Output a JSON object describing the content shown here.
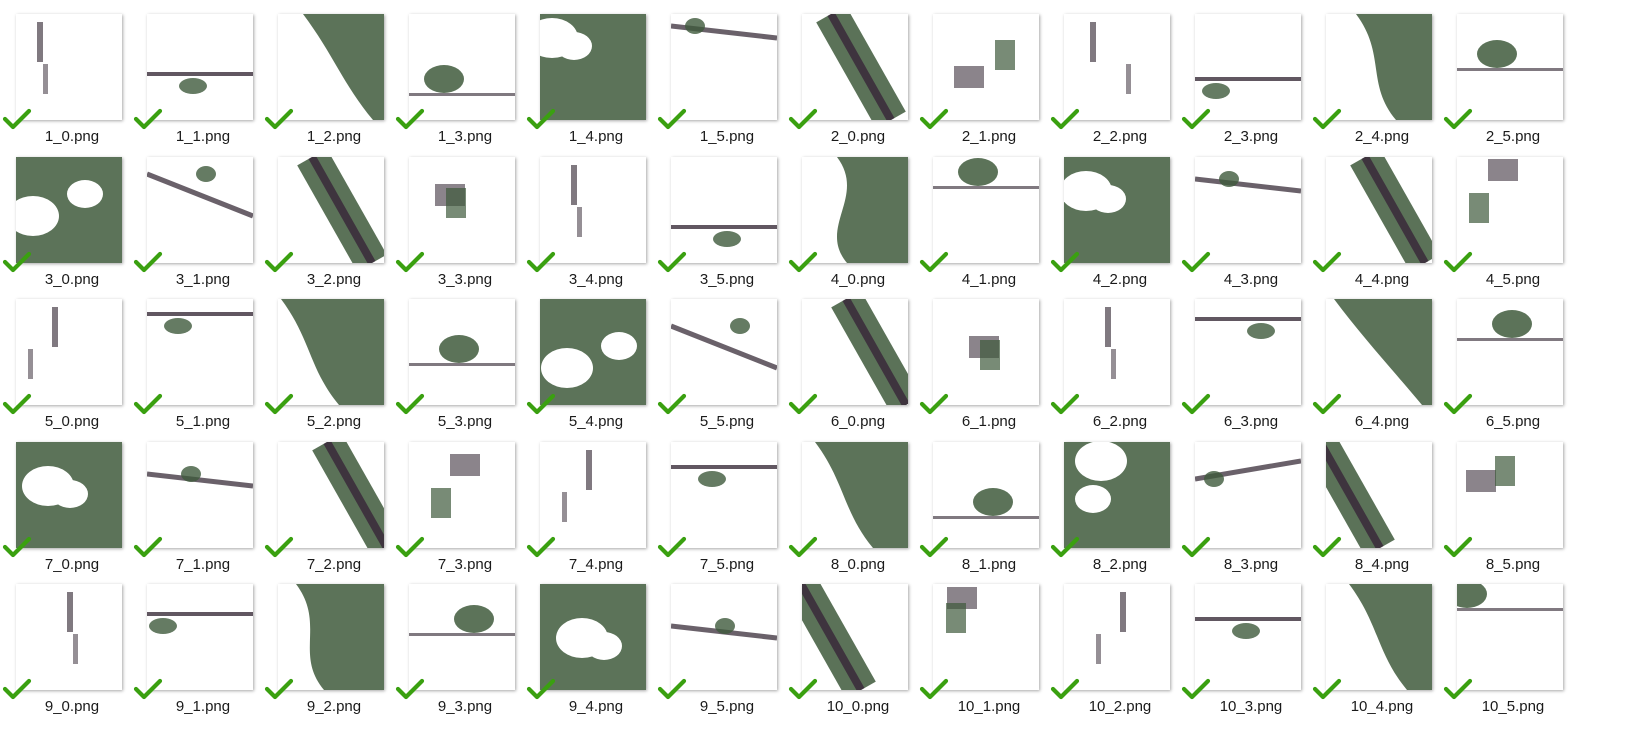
{
  "colors": {
    "vegetation": "#3f5a3c",
    "dark": "#2c1f2c",
    "road": "#3a2a3a",
    "checkmark": "#3aa010",
    "background": "#ffffff"
  },
  "files": [
    {
      "name": "1_0.png",
      "selected": true,
      "icon": "satellite-mask-thumbnail"
    },
    {
      "name": "1_1.png",
      "selected": true,
      "icon": "satellite-mask-thumbnail"
    },
    {
      "name": "1_2.png",
      "selected": true,
      "icon": "satellite-mask-thumbnail"
    },
    {
      "name": "1_3.png",
      "selected": true,
      "icon": "satellite-mask-thumbnail"
    },
    {
      "name": "1_4.png",
      "selected": true,
      "icon": "satellite-mask-thumbnail"
    },
    {
      "name": "1_5.png",
      "selected": true,
      "icon": "satellite-mask-thumbnail"
    },
    {
      "name": "2_0.png",
      "selected": true,
      "icon": "satellite-mask-thumbnail"
    },
    {
      "name": "2_1.png",
      "selected": true,
      "icon": "satellite-mask-thumbnail"
    },
    {
      "name": "2_2.png",
      "selected": true,
      "icon": "satellite-mask-thumbnail"
    },
    {
      "name": "2_3.png",
      "selected": true,
      "icon": "satellite-mask-thumbnail"
    },
    {
      "name": "2_4.png",
      "selected": true,
      "icon": "satellite-mask-thumbnail"
    },
    {
      "name": "2_5.png",
      "selected": true,
      "icon": "satellite-mask-thumbnail"
    },
    {
      "name": "3_0.png",
      "selected": true,
      "icon": "satellite-mask-thumbnail"
    },
    {
      "name": "3_1.png",
      "selected": true,
      "icon": "satellite-mask-thumbnail"
    },
    {
      "name": "3_2.png",
      "selected": true,
      "icon": "satellite-mask-thumbnail"
    },
    {
      "name": "3_3.png",
      "selected": true,
      "icon": "satellite-mask-thumbnail"
    },
    {
      "name": "3_4.png",
      "selected": true,
      "icon": "satellite-mask-thumbnail"
    },
    {
      "name": "3_5.png",
      "selected": true,
      "icon": "satellite-mask-thumbnail"
    },
    {
      "name": "4_0.png",
      "selected": true,
      "icon": "satellite-mask-thumbnail"
    },
    {
      "name": "4_1.png",
      "selected": true,
      "icon": "satellite-mask-thumbnail"
    },
    {
      "name": "4_2.png",
      "selected": true,
      "icon": "satellite-mask-thumbnail"
    },
    {
      "name": "4_3.png",
      "selected": true,
      "icon": "satellite-mask-thumbnail"
    },
    {
      "name": "4_4.png",
      "selected": true,
      "icon": "satellite-mask-thumbnail"
    },
    {
      "name": "4_5.png",
      "selected": true,
      "icon": "satellite-mask-thumbnail"
    },
    {
      "name": "5_0.png",
      "selected": true,
      "icon": "satellite-mask-thumbnail"
    },
    {
      "name": "5_1.png",
      "selected": true,
      "icon": "satellite-mask-thumbnail"
    },
    {
      "name": "5_2.png",
      "selected": true,
      "icon": "satellite-mask-thumbnail"
    },
    {
      "name": "5_3.png",
      "selected": true,
      "icon": "satellite-mask-thumbnail"
    },
    {
      "name": "5_4.png",
      "selected": true,
      "icon": "satellite-mask-thumbnail"
    },
    {
      "name": "5_5.png",
      "selected": true,
      "icon": "satellite-mask-thumbnail"
    },
    {
      "name": "6_0.png",
      "selected": true,
      "icon": "satellite-mask-thumbnail"
    },
    {
      "name": "6_1.png",
      "selected": true,
      "icon": "satellite-mask-thumbnail"
    },
    {
      "name": "6_2.png",
      "selected": true,
      "icon": "satellite-mask-thumbnail"
    },
    {
      "name": "6_3.png",
      "selected": true,
      "icon": "satellite-mask-thumbnail"
    },
    {
      "name": "6_4.png",
      "selected": true,
      "icon": "satellite-mask-thumbnail"
    },
    {
      "name": "6_5.png",
      "selected": true,
      "icon": "satellite-mask-thumbnail"
    },
    {
      "name": "7_0.png",
      "selected": true,
      "icon": "satellite-mask-thumbnail"
    },
    {
      "name": "7_1.png",
      "selected": true,
      "icon": "satellite-mask-thumbnail"
    },
    {
      "name": "7_2.png",
      "selected": true,
      "icon": "satellite-mask-thumbnail"
    },
    {
      "name": "7_3.png",
      "selected": true,
      "icon": "satellite-mask-thumbnail"
    },
    {
      "name": "7_4.png",
      "selected": true,
      "icon": "satellite-mask-thumbnail"
    },
    {
      "name": "7_5.png",
      "selected": true,
      "icon": "satellite-mask-thumbnail"
    },
    {
      "name": "8_0.png",
      "selected": true,
      "icon": "satellite-mask-thumbnail"
    },
    {
      "name": "8_1.png",
      "selected": true,
      "icon": "satellite-mask-thumbnail"
    },
    {
      "name": "8_2.png",
      "selected": true,
      "icon": "satellite-mask-thumbnail"
    },
    {
      "name": "8_3.png",
      "selected": true,
      "icon": "satellite-mask-thumbnail"
    },
    {
      "name": "8_4.png",
      "selected": true,
      "icon": "satellite-mask-thumbnail"
    },
    {
      "name": "8_5.png",
      "selected": true,
      "icon": "satellite-mask-thumbnail"
    },
    {
      "name": "9_0.png",
      "selected": true,
      "icon": "satellite-mask-thumbnail"
    },
    {
      "name": "9_1.png",
      "selected": true,
      "icon": "satellite-mask-thumbnail"
    },
    {
      "name": "9_2.png",
      "selected": true,
      "icon": "satellite-mask-thumbnail"
    },
    {
      "name": "9_3.png",
      "selected": true,
      "icon": "satellite-mask-thumbnail"
    },
    {
      "name": "9_4.png",
      "selected": true,
      "icon": "satellite-mask-thumbnail"
    },
    {
      "name": "9_5.png",
      "selected": true,
      "icon": "satellite-mask-thumbnail"
    },
    {
      "name": "10_0.png",
      "selected": true,
      "icon": "satellite-mask-thumbnail"
    },
    {
      "name": "10_1.png",
      "selected": true,
      "icon": "satellite-mask-thumbnail"
    },
    {
      "name": "10_2.png",
      "selected": true,
      "icon": "satellite-mask-thumbnail"
    },
    {
      "name": "10_3.png",
      "selected": true,
      "icon": "satellite-mask-thumbnail"
    },
    {
      "name": "10_4.png",
      "selected": true,
      "icon": "satellite-mask-thumbnail"
    },
    {
      "name": "10_5.png",
      "selected": true,
      "icon": "satellite-mask-thumbnail"
    }
  ]
}
